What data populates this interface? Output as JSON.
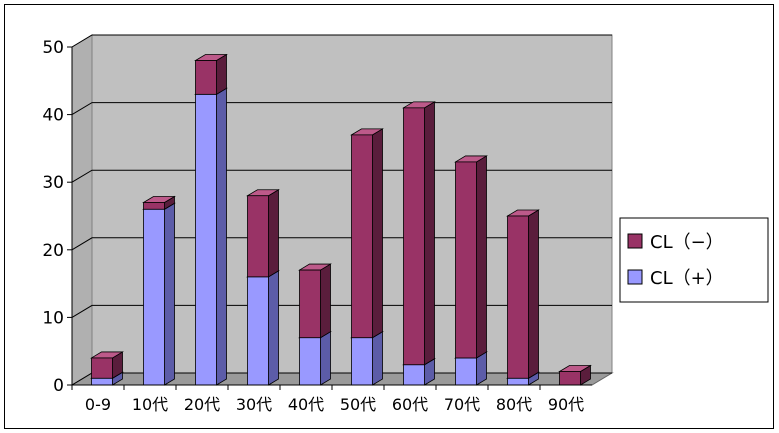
{
  "chart_data": {
    "type": "bar",
    "stacked": true,
    "three_d": true,
    "categories": [
      "0-9",
      "10代",
      "20代",
      "30代",
      "40代",
      "50代",
      "60代",
      "70代",
      "80代",
      "90代"
    ],
    "series": [
      {
        "name": "CL（+）",
        "values": [
          1,
          26,
          43,
          16,
          7,
          7,
          3,
          4,
          1,
          0
        ]
      },
      {
        "name": "CL（−）",
        "values": [
          3,
          1,
          5,
          12,
          10,
          30,
          38,
          29,
          24,
          2
        ]
      }
    ],
    "title": "",
    "xlabel": "",
    "ylabel": "",
    "ylim": [
      0,
      50
    ],
    "yticks": [
      0,
      10,
      20,
      30,
      40,
      50
    ],
    "grid": true,
    "legend_position": "right",
    "legend_order": [
      "CL（−）",
      "CL（+）"
    ]
  },
  "colors": {
    "plus_front": "#9999ff",
    "plus_side": "#5c5ca8",
    "plus_top": "#c0c0ff",
    "minus_front": "#993366",
    "minus_side": "#5a1d3c",
    "minus_top": "#bd5a8a",
    "wall": "#c0c0c0",
    "floor": "#9a9a9a",
    "gridline": "#000000"
  }
}
